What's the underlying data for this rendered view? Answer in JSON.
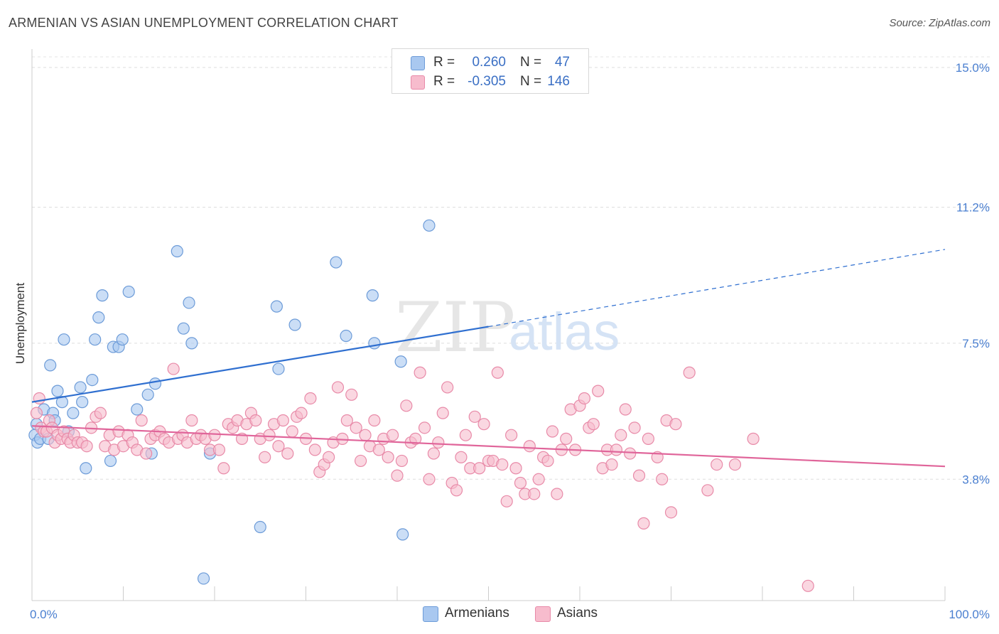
{
  "title": "ARMENIAN VS ASIAN UNEMPLOYMENT CORRELATION CHART",
  "source": "Source: ZipAtlas.com",
  "watermark": {
    "zip": "ZIP",
    "atlas": "atlas"
  },
  "legend": {
    "rows": [
      {
        "r_label": "R =",
        "r_value": "0.260",
        "n_label": "N =",
        "n_value": "47",
        "color": "#a9c8f0",
        "border": "#6c9bd8"
      },
      {
        "r_label": "R =",
        "r_value": "-0.305",
        "n_label": "N =",
        "n_value": "146",
        "color": "#f7bccd",
        "border": "#e88aa8"
      }
    ]
  },
  "bottom_legend": [
    {
      "label": "Armenians",
      "color": "#a9c8f0",
      "border": "#6c9bd8"
    },
    {
      "label": "Asians",
      "color": "#f7bccd",
      "border": "#e88aa8"
    }
  ],
  "chart_data": {
    "type": "scatter",
    "title": "ARMENIAN VS ASIAN UNEMPLOYMENT CORRELATION CHART",
    "xlabel": "",
    "ylabel": "Unemployment",
    "xlim": [
      0,
      100
    ],
    "ylim": [
      0.5,
      15.5
    ],
    "x_tick_labels": [
      "0.0%",
      "100.0%"
    ],
    "y_ticks": [
      3.8,
      7.5,
      11.2,
      15.0
    ],
    "y_tick_labels": [
      "3.8%",
      "7.5%",
      "11.2%",
      "15.0%"
    ],
    "grid": "horizontal dashed",
    "legend_position": "top-center",
    "series": [
      {
        "name": "Armenians",
        "color": "#a9c8f0",
        "edge": "#6c9bd8",
        "trend": {
          "x0": 0,
          "y0": 5.9,
          "x1": 50,
          "y1": 7.95,
          "dash_to_x": 100,
          "dash_to_y": 10.05,
          "color": "#2f6fd0"
        },
        "points": [
          [
            0.3,
            5.0
          ],
          [
            0.6,
            4.8
          ],
          [
            0.9,
            4.9
          ],
          [
            1.3,
            5.7
          ],
          [
            1.8,
            4.9
          ],
          [
            2.0,
            6.9
          ],
          [
            2.3,
            5.6
          ],
          [
            2.5,
            5.4
          ],
          [
            2.8,
            6.2
          ],
          [
            3.3,
            5.9
          ],
          [
            3.5,
            7.6
          ],
          [
            4.0,
            5.1
          ],
          [
            4.5,
            5.6
          ],
          [
            5.3,
            6.3
          ],
          [
            5.5,
            5.9
          ],
          [
            5.9,
            4.1
          ],
          [
            6.6,
            6.5
          ],
          [
            6.9,
            7.6
          ],
          [
            7.3,
            8.2
          ],
          [
            7.7,
            8.8
          ],
          [
            8.6,
            4.3
          ],
          [
            8.9,
            7.4
          ],
          [
            9.5,
            7.4
          ],
          [
            9.9,
            7.6
          ],
          [
            10.6,
            8.9
          ],
          [
            11.5,
            5.7
          ],
          [
            12.7,
            6.1
          ],
          [
            13.1,
            4.5
          ],
          [
            13.5,
            6.4
          ],
          [
            15.9,
            10.0
          ],
          [
            16.6,
            7.9
          ],
          [
            17.2,
            8.6
          ],
          [
            17.5,
            7.5
          ],
          [
            18.8,
            1.1
          ],
          [
            19.5,
            4.5
          ],
          [
            25.0,
            2.5
          ],
          [
            26.8,
            8.5
          ],
          [
            27.0,
            6.8
          ],
          [
            28.8,
            8.0
          ],
          [
            33.3,
            9.7
          ],
          [
            34.4,
            7.7
          ],
          [
            37.3,
            8.8
          ],
          [
            37.5,
            7.5
          ],
          [
            40.4,
            7.0
          ],
          [
            40.6,
            2.3
          ],
          [
            43.5,
            10.7
          ],
          [
            0.5,
            5.3
          ]
        ]
      },
      {
        "name": "Asians",
        "color": "#f7bccd",
        "edge": "#e88aa8",
        "trend": {
          "x0": 0,
          "y0": 5.25,
          "x1": 100,
          "y1": 4.15,
          "color": "#e0659a"
        },
        "points": [
          [
            0.5,
            5.6
          ],
          [
            0.8,
            6.0
          ],
          [
            1.0,
            5.2
          ],
          [
            1.3,
            5.1
          ],
          [
            1.6,
            5.1
          ],
          [
            1.9,
            5.4
          ],
          [
            2.2,
            5.2
          ],
          [
            2.5,
            4.8
          ],
          [
            2.8,
            5.0
          ],
          [
            3.2,
            4.9
          ],
          [
            3.5,
            5.1
          ],
          [
            3.9,
            4.9
          ],
          [
            4.2,
            4.8
          ],
          [
            4.6,
            5.0
          ],
          [
            5.0,
            4.8
          ],
          [
            5.5,
            4.8
          ],
          [
            6.0,
            4.7
          ],
          [
            6.5,
            5.2
          ],
          [
            7.0,
            5.5
          ],
          [
            7.5,
            5.6
          ],
          [
            8.0,
            4.7
          ],
          [
            8.5,
            5.0
          ],
          [
            9.0,
            4.6
          ],
          [
            9.5,
            5.1
          ],
          [
            10.0,
            4.7
          ],
          [
            10.5,
            5.0
          ],
          [
            11.0,
            4.8
          ],
          [
            11.5,
            4.6
          ],
          [
            12.0,
            5.4
          ],
          [
            12.5,
            4.5
          ],
          [
            13.0,
            4.9
          ],
          [
            13.5,
            5.0
          ],
          [
            14.0,
            5.1
          ],
          [
            14.5,
            4.9
          ],
          [
            15.0,
            4.8
          ],
          [
            15.5,
            6.8
          ],
          [
            16.0,
            4.9
          ],
          [
            16.5,
            5.0
          ],
          [
            17.0,
            4.8
          ],
          [
            17.5,
            5.4
          ],
          [
            18.0,
            4.9
          ],
          [
            18.5,
            5.0
          ],
          [
            19.0,
            4.9
          ],
          [
            19.5,
            4.6
          ],
          [
            20.0,
            5.0
          ],
          [
            20.5,
            4.6
          ],
          [
            21.0,
            4.1
          ],
          [
            21.5,
            5.3
          ],
          [
            22.0,
            5.2
          ],
          [
            22.5,
            5.4
          ],
          [
            23.0,
            4.9
          ],
          [
            23.5,
            5.3
          ],
          [
            24.0,
            5.6
          ],
          [
            24.5,
            5.4
          ],
          [
            25.0,
            4.9
          ],
          [
            25.5,
            4.4
          ],
          [
            26.0,
            5.0
          ],
          [
            26.5,
            5.3
          ],
          [
            27.0,
            4.7
          ],
          [
            27.5,
            5.4
          ],
          [
            28.0,
            4.5
          ],
          [
            28.5,
            5.1
          ],
          [
            29.0,
            5.5
          ],
          [
            29.5,
            5.6
          ],
          [
            30.0,
            4.9
          ],
          [
            30.5,
            6.0
          ],
          [
            31.0,
            4.6
          ],
          [
            31.5,
            4.0
          ],
          [
            32.0,
            4.2
          ],
          [
            32.5,
            4.4
          ],
          [
            33.0,
            4.8
          ],
          [
            33.5,
            6.3
          ],
          [
            34.0,
            4.9
          ],
          [
            34.5,
            5.4
          ],
          [
            35.0,
            6.1
          ],
          [
            35.5,
            5.2
          ],
          [
            36.0,
            4.3
          ],
          [
            36.5,
            5.0
          ],
          [
            37.0,
            4.7
          ],
          [
            37.5,
            5.4
          ],
          [
            38.0,
            4.6
          ],
          [
            38.5,
            4.9
          ],
          [
            39.0,
            4.4
          ],
          [
            39.5,
            5.0
          ],
          [
            40.0,
            3.9
          ],
          [
            40.5,
            4.3
          ],
          [
            41.0,
            5.8
          ],
          [
            41.5,
            4.8
          ],
          [
            42.0,
            4.9
          ],
          [
            42.5,
            6.7
          ],
          [
            43.0,
            5.2
          ],
          [
            43.5,
            3.8
          ],
          [
            44.0,
            4.5
          ],
          [
            44.5,
            4.8
          ],
          [
            45.0,
            5.6
          ],
          [
            45.5,
            6.3
          ],
          [
            46.0,
            3.7
          ],
          [
            46.5,
            3.5
          ],
          [
            47.0,
            4.4
          ],
          [
            47.5,
            5.0
          ],
          [
            48.0,
            4.1
          ],
          [
            48.5,
            5.5
          ],
          [
            49.0,
            4.1
          ],
          [
            49.5,
            5.3
          ],
          [
            50.0,
            4.3
          ],
          [
            50.5,
            4.3
          ],
          [
            51.0,
            6.7
          ],
          [
            51.5,
            4.2
          ],
          [
            52.0,
            3.2
          ],
          [
            52.5,
            5.0
          ],
          [
            53.0,
            4.1
          ],
          [
            53.5,
            3.7
          ],
          [
            54.0,
            3.4
          ],
          [
            54.5,
            4.7
          ],
          [
            55.0,
            3.4
          ],
          [
            55.5,
            3.8
          ],
          [
            56.0,
            4.4
          ],
          [
            56.5,
            4.3
          ],
          [
            57.0,
            5.1
          ],
          [
            57.5,
            3.4
          ],
          [
            58.0,
            4.6
          ],
          [
            58.5,
            4.9
          ],
          [
            59.0,
            5.7
          ],
          [
            59.5,
            4.6
          ],
          [
            60.0,
            5.8
          ],
          [
            60.5,
            6.0
          ],
          [
            61.0,
            5.2
          ],
          [
            61.5,
            5.3
          ],
          [
            62.0,
            6.2
          ],
          [
            62.5,
            4.1
          ],
          [
            63.0,
            4.6
          ],
          [
            63.5,
            4.2
          ],
          [
            64.0,
            4.6
          ],
          [
            64.5,
            5.0
          ],
          [
            65.0,
            5.7
          ],
          [
            65.5,
            4.5
          ],
          [
            66.0,
            5.2
          ],
          [
            66.5,
            3.9
          ],
          [
            67.0,
            2.6
          ],
          [
            67.5,
            4.9
          ],
          [
            68.5,
            4.4
          ],
          [
            69.0,
            3.8
          ],
          [
            69.5,
            5.4
          ],
          [
            70.0,
            2.9
          ],
          [
            70.5,
            5.3
          ],
          [
            72.0,
            6.7
          ],
          [
            74.0,
            3.5
          ],
          [
            75.0,
            4.2
          ],
          [
            77.0,
            4.2
          ],
          [
            79.0,
            4.9
          ],
          [
            85.0,
            0.9
          ]
        ]
      }
    ]
  }
}
